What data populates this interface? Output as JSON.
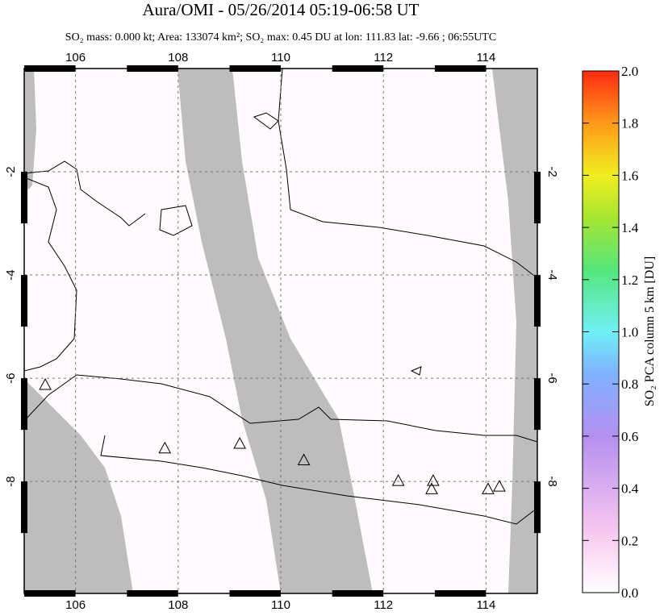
{
  "chart_data": {
    "type": "map",
    "title": "Aura/OMI - 05/26/2014 05:19-06:58 UT",
    "subtitle": "SO₂ mass: 0.000 kt; Area: 133074 km²; SO₂ max: 0.45 DU at lon: 111.83 lat: -9.66 ; 06:55UTC",
    "xlim": [
      105,
      115
    ],
    "ylim": [
      -10.17,
      0
    ],
    "xticks": [
      106,
      108,
      110,
      112,
      114
    ],
    "yticks": [
      -2,
      -4,
      -6,
      -8
    ],
    "grid": true,
    "volcanoes": {
      "x": [
        105.41,
        107.74,
        109.2,
        110.45,
        112.29,
        112.97,
        112.94,
        114.04,
        114.26
      ],
      "y": [
        -6.14,
        -7.37,
        -7.28,
        -7.6,
        -8.0,
        -8.0,
        -8.16,
        -8.16,
        -8.11
      ]
    },
    "colorbar": {
      "label": "SO₂ PCA column 5 km [DU]",
      "lim": [
        0,
        2
      ],
      "ticks": [
        {
          "value": 0,
          "label": "0.0"
        },
        {
          "value": 0.2,
          "label": "0.2"
        },
        {
          "value": 0.4,
          "label": "0.4"
        },
        {
          "value": 0.6,
          "label": "0.6"
        },
        {
          "value": 0.8,
          "label": "0.8"
        },
        {
          "value": 1,
          "label": "1.0"
        },
        {
          "value": 1.2,
          "label": "1.2"
        },
        {
          "value": 1.4,
          "label": "1.4"
        },
        {
          "value": 1.6,
          "label": "1.6"
        },
        {
          "value": 1.8,
          "label": "1.8"
        },
        {
          "value": 2,
          "label": "2.0"
        }
      ]
    }
  }
}
